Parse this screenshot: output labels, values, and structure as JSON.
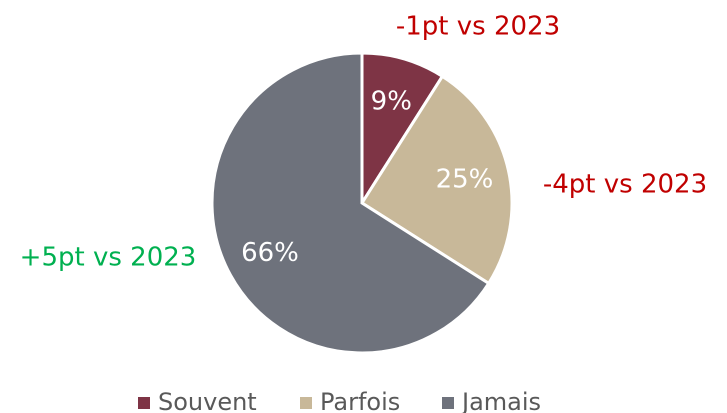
{
  "chart_data": {
    "type": "pie",
    "categories": [
      "Souvent",
      "Parfois",
      "Jamais"
    ],
    "values": [
      9,
      25,
      66
    ],
    "value_labels": [
      "9%",
      "25%",
      "66%"
    ],
    "colors": [
      "#7e3445",
      "#c8b899",
      "#6e727c"
    ],
    "annotations": [
      {
        "text": "-1pt vs 2023",
        "color": "#c00000"
      },
      {
        "text": "-4pt vs 2023",
        "color": "#c00000"
      },
      {
        "text": "+5pt vs 2023",
        "color": "#00b050"
      }
    ]
  }
}
